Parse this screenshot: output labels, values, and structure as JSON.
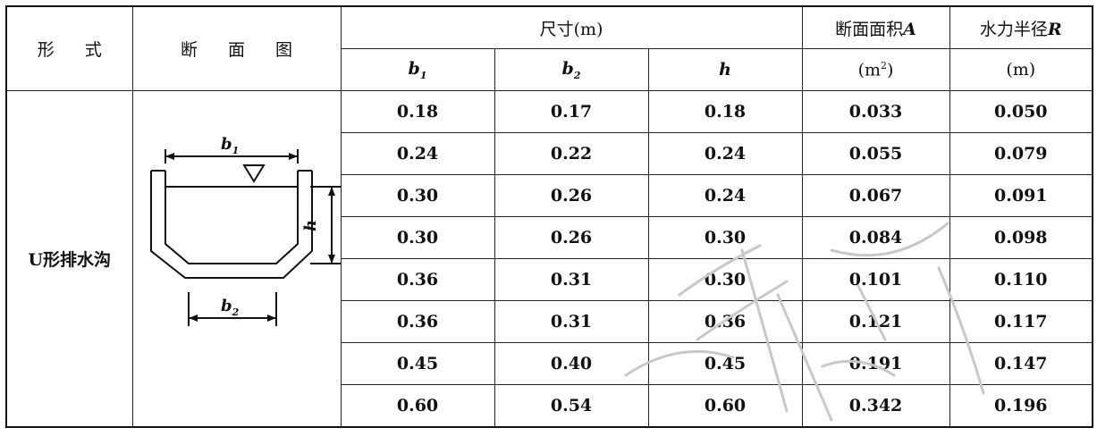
{
  "table": {
    "headers": {
      "form": "形 式",
      "section": "断 面 图",
      "dimensions": "尺寸(m)",
      "b1": "b",
      "b1_sub": "1",
      "b2": "b",
      "b2_sub": "2",
      "h": "h",
      "area_line1": "断面面积",
      "area_var": "A",
      "area_unit_pre": "(m",
      "area_unit_sup": "2",
      "area_unit_post": ")",
      "radius_line1": "水力半径",
      "radius_var": "R",
      "radius_unit": "(m)"
    },
    "form_value": "U形排水沟",
    "rows": [
      {
        "b1": "0.18",
        "b2": "0.17",
        "h": "0.18",
        "A": "0.033",
        "R": "0.050"
      },
      {
        "b1": "0.24",
        "b2": "0.22",
        "h": "0.24",
        "A": "0.055",
        "R": "0.079"
      },
      {
        "b1": "0.30",
        "b2": "0.26",
        "h": "0.24",
        "A": "0.067",
        "R": "0.091"
      },
      {
        "b1": "0.30",
        "b2": "0.26",
        "h": "0.30",
        "A": "0.084",
        "R": "0.098"
      },
      {
        "b1": "0.36",
        "b2": "0.31",
        "h": "0.30",
        "A": "0.101",
        "R": "0.110"
      },
      {
        "b1": "0.36",
        "b2": "0.31",
        "h": "0.36",
        "A": "0.121",
        "R": "0.117"
      },
      {
        "b1": "0.45",
        "b2": "0.40",
        "h": "0.45",
        "A": "0.191",
        "R": "0.147"
      },
      {
        "b1": "0.60",
        "b2": "0.54",
        "h": "0.60",
        "A": "0.342",
        "R": "0.196"
      }
    ]
  },
  "diagram": {
    "b1": "b",
    "b1_sub": "1",
    "b2": "b",
    "b2_sub": "2",
    "h": "h"
  }
}
